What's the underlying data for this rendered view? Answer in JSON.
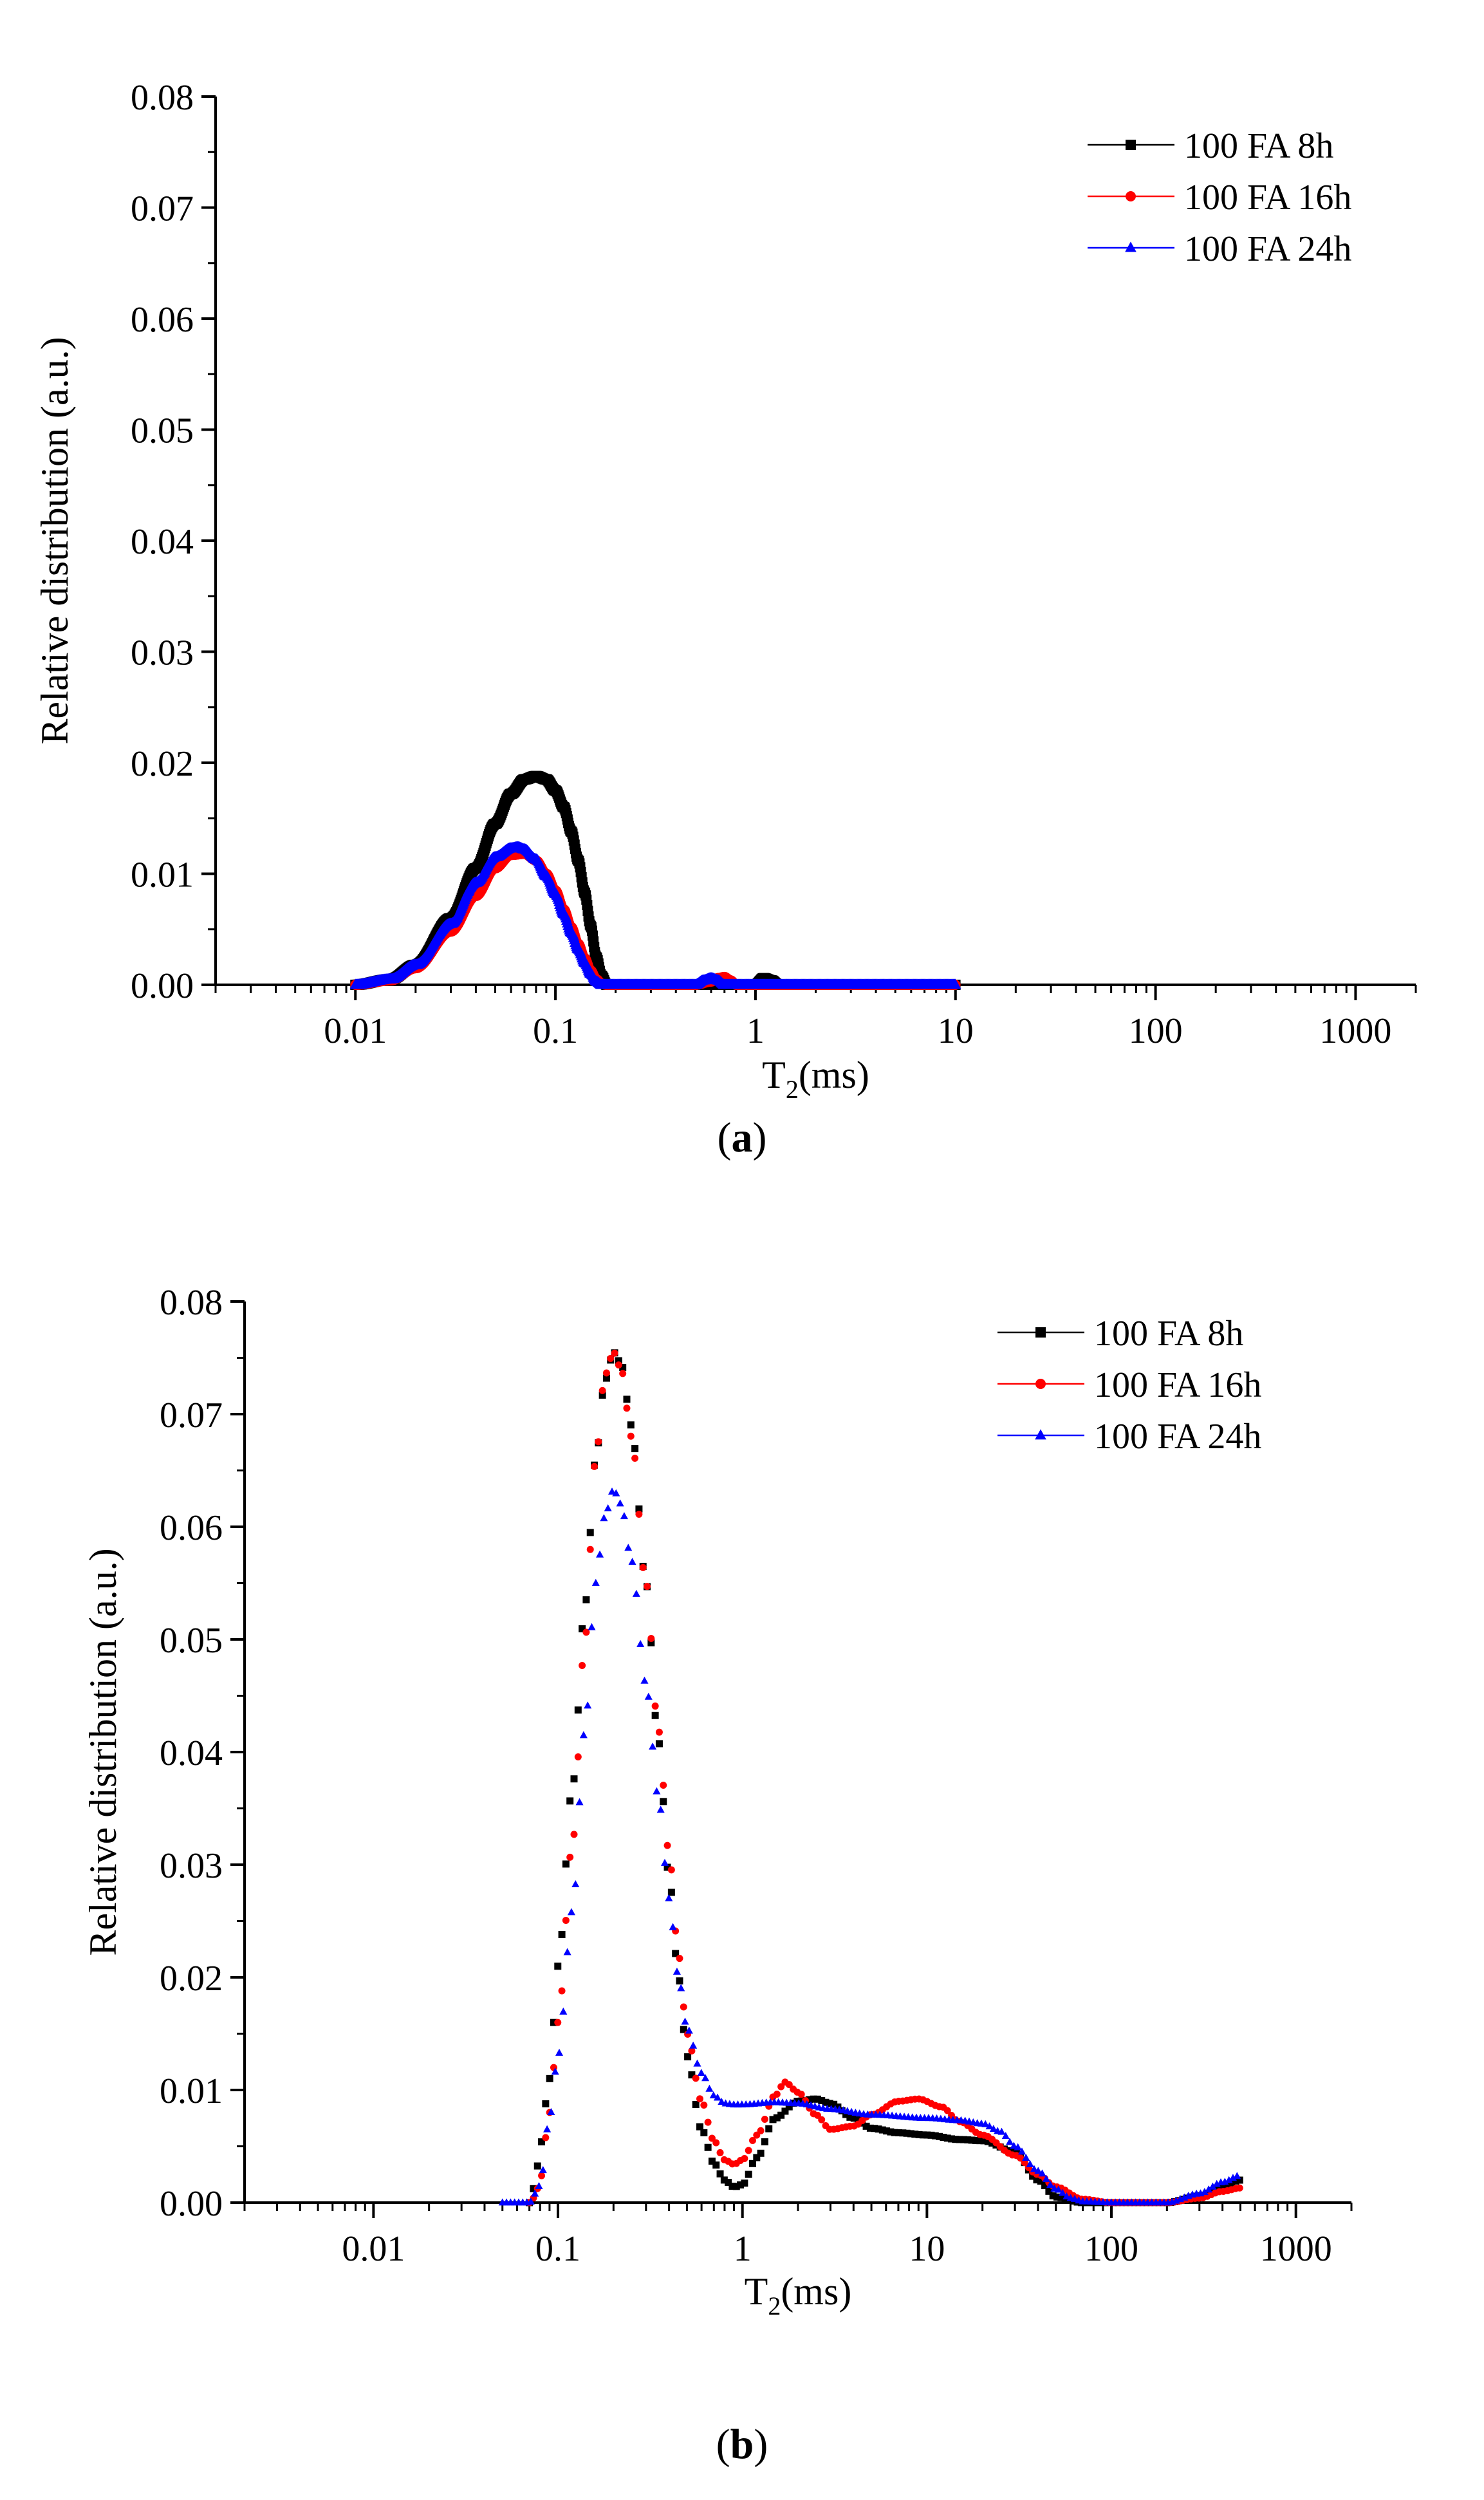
{
  "chart_data": [
    {
      "id": "a",
      "type": "scatter",
      "caption_open": "(",
      "caption_letter": "a",
      "caption_close": ")",
      "xlabel": "T",
      "xlabel_sub": "2",
      "xlabel_suffix": "(ms)",
      "ylabel": "Relative distribution (a.u.)",
      "xscale": "log",
      "xlim": [
        0.002,
        2000
      ],
      "ylim": [
        0,
        0.08
      ],
      "xticks": [
        "0.01",
        "0.1",
        "1",
        "10",
        "100",
        "1000"
      ],
      "yticks": [
        "0.00",
        "0.01",
        "0.02",
        "0.03",
        "0.04",
        "0.05",
        "0.06",
        "0.07",
        "0.08"
      ],
      "legend_position": "top-right",
      "series": [
        {
          "name": "100 FA 8h",
          "color": "#000000",
          "marker": "square",
          "x": [
            0.01,
            0.015,
            0.02,
            0.03,
            0.04,
            0.05,
            0.06,
            0.07,
            0.08,
            0.09,
            0.1,
            0.11,
            0.12,
            0.13,
            0.14,
            0.15,
            0.16,
            0.17,
            0.18,
            0.2,
            0.5,
            1.0,
            1.1,
            1.2,
            1.3,
            2,
            10
          ],
          "y": [
            0,
            0.0005,
            0.0018,
            0.006,
            0.0105,
            0.0145,
            0.0172,
            0.0185,
            0.0188,
            0.0185,
            0.0175,
            0.016,
            0.0138,
            0.0112,
            0.0083,
            0.0053,
            0.0025,
            0.0008,
            0,
            0,
            0,
            0,
            0.0006,
            0.0004,
            0,
            0,
            0
          ]
        },
        {
          "name": "100 FA 16h",
          "color": "#ff0000",
          "marker": "circle",
          "x": [
            0.01,
            0.015,
            0.02,
            0.03,
            0.04,
            0.05,
            0.06,
            0.07,
            0.08,
            0.09,
            0.1,
            0.11,
            0.12,
            0.13,
            0.14,
            0.15,
            0.16,
            0.17,
            0.18,
            0.5,
            0.6,
            0.65,
            0.7,
            0.75,
            0.8,
            2,
            10
          ],
          "y": [
            0,
            0.0004,
            0.0015,
            0.0048,
            0.008,
            0.0105,
            0.0117,
            0.0118,
            0.0112,
            0.01,
            0.0085,
            0.0068,
            0.0052,
            0.0037,
            0.0024,
            0.0013,
            0.0005,
            0.0001,
            0,
            0,
            0.0003,
            0.0006,
            0.0007,
            0.0004,
            0,
            0,
            0
          ]
        },
        {
          "name": "100 FA 24h",
          "color": "#0000ff",
          "marker": "triangle",
          "x": [
            0.01,
            0.015,
            0.02,
            0.03,
            0.04,
            0.05,
            0.06,
            0.065,
            0.07,
            0.08,
            0.09,
            0.1,
            0.11,
            0.12,
            0.13,
            0.14,
            0.15,
            0.16,
            0.17,
            0.5,
            0.55,
            0.6,
            0.65,
            0.7,
            2,
            10
          ],
          "y": [
            0,
            0.0005,
            0.0018,
            0.0055,
            0.0092,
            0.0115,
            0.0123,
            0.0124,
            0.0122,
            0.0113,
            0.0098,
            0.0082,
            0.0064,
            0.0047,
            0.0032,
            0.002,
            0.001,
            0.0003,
            0,
            0,
            0.0004,
            0.0006,
            0.0004,
            0,
            0,
            0
          ]
        }
      ]
    },
    {
      "id": "b",
      "type": "scatter",
      "caption_open": "(",
      "caption_letter": "b",
      "caption_close": ")",
      "xlabel": "T",
      "xlabel_sub": "2",
      "xlabel_suffix": "(ms)",
      "ylabel": "Relative distribution (a.u.)",
      "xscale": "log",
      "xlim": [
        0.002,
        2000
      ],
      "ylim": [
        0,
        0.08
      ],
      "xticks": [
        "0.01",
        "0.1",
        "1",
        "10",
        "100",
        "1000"
      ],
      "yticks": [
        "0.00",
        "0.01",
        "0.02",
        "0.03",
        "0.04",
        "0.05",
        "0.06",
        "0.07",
        "0.08"
      ],
      "legend_position": "top-right",
      "series": [
        {
          "name": "100 FA 8h",
          "color": "#000000",
          "marker": "square",
          "x": [
            0.07,
            0.075,
            0.08,
            0.09,
            0.1,
            0.12,
            0.14,
            0.16,
            0.18,
            0.2,
            0.22,
            0.25,
            0.3,
            0.35,
            0.4,
            0.45,
            0.5,
            0.6,
            0.7,
            0.8,
            0.9,
            1.0,
            1.2,
            1.5,
            2.0,
            2.5,
            3.0,
            4.0,
            5.0,
            7.0,
            10,
            15,
            20,
            30,
            40,
            50,
            70,
            100,
            200,
            300,
            400,
            500
          ],
          "y": [
            0,
            0.0015,
            0.005,
            0.011,
            0.021,
            0.037,
            0.053,
            0.066,
            0.073,
            0.0755,
            0.0745,
            0.069,
            0.055,
            0.041,
            0.029,
            0.02,
            0.013,
            0.0065,
            0.0035,
            0.002,
            0.0014,
            0.0016,
            0.004,
            0.0075,
            0.009,
            0.0092,
            0.0088,
            0.0075,
            0.0066,
            0.0062,
            0.006,
            0.0056,
            0.0055,
            0.0045,
            0.002,
            0.0005,
            0,
            0,
            0,
            0.0006,
            0.0015,
            0.002
          ]
        },
        {
          "name": "100 FA 16h",
          "color": "#ff0000",
          "marker": "circle",
          "x": [
            0.07,
            0.075,
            0.08,
            0.09,
            0.1,
            0.12,
            0.14,
            0.16,
            0.18,
            0.2,
            0.22,
            0.25,
            0.3,
            0.35,
            0.4,
            0.45,
            0.5,
            0.6,
            0.7,
            0.8,
            0.9,
            1.0,
            1.2,
            1.5,
            1.7,
            2.0,
            2.5,
            3.0,
            4.0,
            5.0,
            7.0,
            9.0,
            12,
            15,
            20,
            30,
            40,
            50,
            70,
            100,
            200,
            300,
            400,
            500
          ],
          "y": [
            0,
            0.0005,
            0.002,
            0.008,
            0.016,
            0.032,
            0.05,
            0.066,
            0.0735,
            0.0755,
            0.074,
            0.068,
            0.055,
            0.042,
            0.031,
            0.022,
            0.015,
            0.009,
            0.0055,
            0.0038,
            0.0034,
            0.0038,
            0.006,
            0.0095,
            0.0107,
            0.0098,
            0.0078,
            0.0065,
            0.0068,
            0.0078,
            0.009,
            0.0092,
            0.0085,
            0.0072,
            0.006,
            0.0042,
            0.0025,
            0.0014,
            0.0003,
            0,
            0,
            0.0004,
            0.001,
            0.0013
          ]
        },
        {
          "name": "100 FA 24h",
          "color": "#0000ff",
          "marker": "triangle",
          "x": [
            0.05,
            0.07,
            0.08,
            0.09,
            0.1,
            0.12,
            0.14,
            0.16,
            0.18,
            0.2,
            0.22,
            0.25,
            0.3,
            0.35,
            0.4,
            0.45,
            0.5,
            0.6,
            0.7,
            0.8,
            0.9,
            1.0,
            1.5,
            2.0,
            3.0,
            5.0,
            10,
            15,
            20,
            25,
            30,
            40,
            50,
            60,
            70,
            100,
            200,
            300,
            400,
            500
          ],
          "y": [
            0,
            0,
            0.0015,
            0.0075,
            0.013,
            0.026,
            0.042,
            0.055,
            0.061,
            0.0633,
            0.062,
            0.057,
            0.046,
            0.036,
            0.027,
            0.02,
            0.0155,
            0.0115,
            0.0095,
            0.0088,
            0.0087,
            0.0087,
            0.0089,
            0.0088,
            0.0083,
            0.0078,
            0.0075,
            0.0073,
            0.007,
            0.0063,
            0.005,
            0.0028,
            0.0012,
            0.0004,
            0.0001,
            0,
            0,
            0.0008,
            0.0018,
            0.0024
          ]
        }
      ]
    }
  ]
}
